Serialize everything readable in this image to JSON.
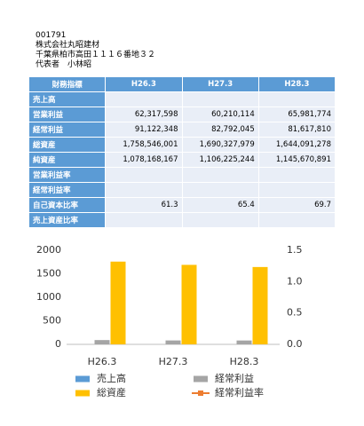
{
  "header": {
    "code": "001791",
    "company": "株式会社丸昭建材",
    "address": "千葉県柏市高田１１１６番地３２",
    "representative": "代表者　小林昭"
  },
  "table": {
    "header": [
      "財務指標",
      "H26.3",
      "H27.3",
      "H28.3"
    ],
    "rows": [
      [
        "売上高",
        null,
        null,
        null
      ],
      [
        "営業利益",
        "62,317,598",
        "60,210,114",
        "65,981,774"
      ],
      [
        "経常利益",
        "91,122,348",
        "82,792,045",
        "81,617,810"
      ],
      [
        "総資産",
        "1,758,546,001",
        "1,690,327,979",
        "1,644,091,278"
      ],
      [
        "純資産",
        "1,078,168,167",
        "1,106,225,244",
        "1,145,670,891"
      ],
      [
        "営業利益率",
        null,
        null,
        null
      ],
      [
        "経常利益率",
        null,
        null,
        null
      ],
      [
        "自己資本比率",
        "61.3",
        "65.4",
        "69.7"
      ],
      [
        "売上資産比率",
        null,
        null,
        null
      ]
    ]
  },
  "chart_data": {
    "type": "bar",
    "categories": [
      "H26.3",
      "H27.3",
      "H28.3"
    ],
    "series": [
      {
        "name": "売上高",
        "color": "#5b9bd5",
        "values": [
          null,
          null,
          null
        ]
      },
      {
        "name": "経常利益",
        "color": "#a5a5a5",
        "values": [
          91,
          83,
          82
        ]
      },
      {
        "name": "総資産",
        "color": "#ffc000",
        "values": [
          1759,
          1690,
          1644
        ]
      },
      {
        "name": "経常利益率",
        "color": "#ed7d31",
        "type": "line",
        "axis": "y2",
        "values": [
          null,
          null,
          null
        ]
      }
    ],
    "ylim": [
      0,
      2000
    ],
    "yticks": [
      0,
      500,
      1000,
      1500,
      2000
    ],
    "y2lim": [
      0,
      1.5
    ],
    "y2ticks": [
      {
        "value": 0,
        "label": "0.0"
      },
      0.5,
      {
        "value": 1,
        "label": "1.0"
      },
      1.5
    ],
    "grid": false,
    "legend": "bottom"
  }
}
